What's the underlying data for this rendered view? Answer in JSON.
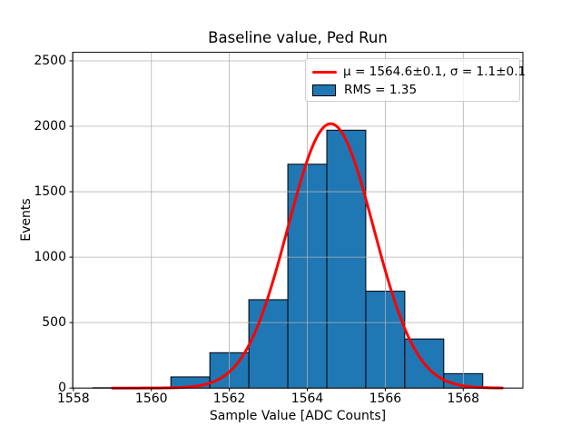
{
  "chart_data": {
    "type": "bar",
    "subtype": "histogram-with-gaussian-fit",
    "title": "Baseline value, Ped Run",
    "xlabel": "Sample Value [ADC Counts]",
    "ylabel": "Events",
    "xlim": [
      1557.98,
      1569.53
    ],
    "ylim": [
      0,
      2565
    ],
    "xticks": [
      1558,
      1560,
      1562,
      1564,
      1566,
      1568
    ],
    "yticks": [
      0,
      500,
      1000,
      1500,
      2000,
      2500
    ],
    "grid": true,
    "grid_color": "#b0b0b0",
    "legend_position": "upper right",
    "histogram": {
      "bin_width": 1,
      "bin_centers": [
        1559,
        1560,
        1561,
        1562,
        1563,
        1564,
        1565,
        1566,
        1567,
        1568
      ],
      "counts": [
        3,
        0,
        85,
        270,
        675,
        1710,
        1970,
        740,
        375,
        110
      ],
      "fill_color": "#1f77b4",
      "edge_color": "#000000",
      "label": "RMS = 1.35"
    },
    "fit_curve": {
      "type": "gaussian",
      "amplitude": 2020,
      "mu": 1564.6,
      "sigma": 1.1,
      "x_start": 1559,
      "x_end": 1569,
      "color": "#ff0000",
      "label": "μ = 1564.6±0.1, σ = 1.1±0.1"
    }
  }
}
